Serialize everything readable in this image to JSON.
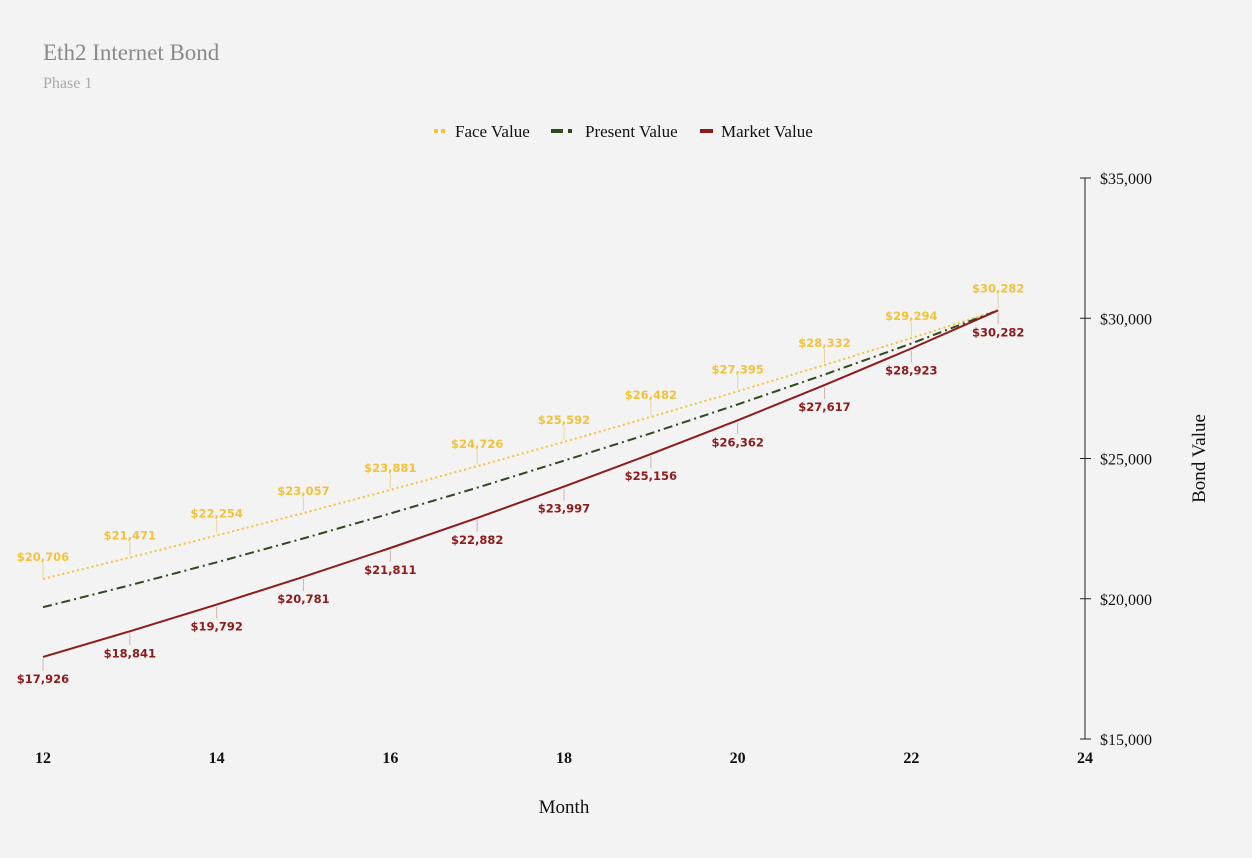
{
  "chart_data": {
    "type": "line",
    "title": "Eth2 Internet Bond",
    "subtitle": "Phase 1",
    "xlabel": "Month",
    "ylabel": "Bond Value",
    "xlim": [
      12,
      24
    ],
    "ylim": [
      15000,
      35000
    ],
    "x_ticks": [
      12,
      14,
      16,
      18,
      20,
      22,
      24
    ],
    "y_ticks": [
      15000,
      20000,
      25000,
      30000,
      35000
    ],
    "y_tick_labels": [
      "$15,000",
      "$20,000",
      "$25,000",
      "$30,000",
      "$35,000"
    ],
    "y_axis_position": "right",
    "grid": false,
    "legend_position": "top-center",
    "x": [
      12,
      13,
      14,
      15,
      16,
      17,
      18,
      19,
      20,
      21,
      22,
      23
    ],
    "series": [
      {
        "name": "Face Value",
        "color": "#f2c23c",
        "line_style": "dotted",
        "values": [
          20706,
          21471,
          22254,
          23057,
          23881,
          24726,
          25592,
          26482,
          27395,
          28332,
          29294,
          30282
        ],
        "data_labels": [
          "$20,706",
          "$21,471",
          "$22,254",
          "$23,057",
          "$23,881",
          "$24,726",
          "$25,592",
          "$26,482",
          "$27,395",
          "$28,332",
          "$29,294",
          "$30,282"
        ]
      },
      {
        "name": "Present Value",
        "color": "#2e4a1e",
        "line_style": "dash-dot",
        "values": [
          19700,
          20480,
          21300,
          22150,
          23040,
          23960,
          24920,
          25900,
          26930,
          27990,
          29100,
          30282
        ]
      },
      {
        "name": "Market Value",
        "color": "#8f1a1a",
        "line_style": "solid",
        "values": [
          17926,
          18841,
          19792,
          20781,
          21811,
          22882,
          23997,
          25156,
          26362,
          27617,
          28923,
          30282
        ],
        "data_labels": [
          "$17,926",
          "$18,841",
          "$19,792",
          "$20,781",
          "$21,811",
          "$22,882",
          "$23,997",
          "$25,156",
          "$26,362",
          "$27,617",
          "$28,923",
          "$30,282"
        ]
      }
    ]
  }
}
